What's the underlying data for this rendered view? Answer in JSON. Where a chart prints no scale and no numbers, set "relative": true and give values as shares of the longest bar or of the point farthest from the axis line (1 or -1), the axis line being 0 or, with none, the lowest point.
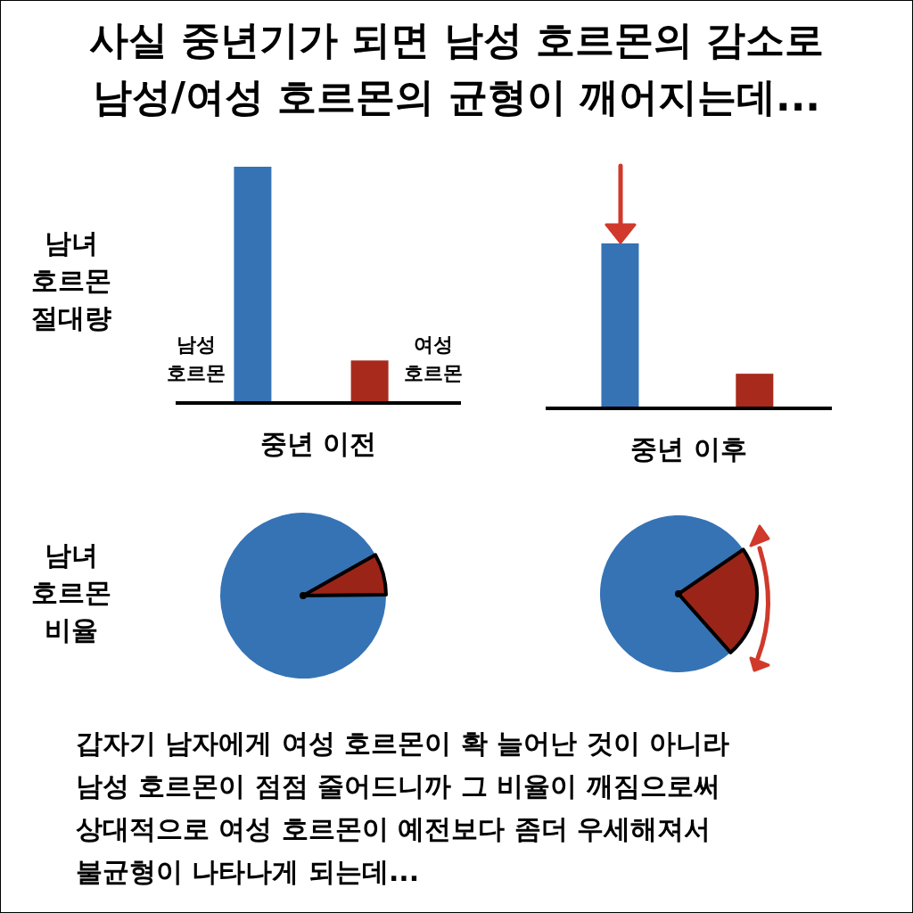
{
  "chart_data": [
    {
      "type": "bar",
      "title": "사실 중년기가 되면 남성 호르몬의 감소로\n남성/여성 호르몬의 균형이 깨어지는데...",
      "categories": [
        "남성 호르몬",
        "여성 호르몬"
      ],
      "values": [
        1,
        0.18
      ],
      "colors": [
        "#3573b5",
        "#a82a1c"
      ],
      "relative": true,
      "xlabel": "중년 이전",
      "annotations": [
        "남녀 호르몬 절대량"
      ]
    },
    {
      "type": "bar",
      "categories": [
        null,
        null
      ],
      "values": [
        1,
        0.21
      ],
      "colors": [
        "#3573b5",
        "#a82a1c"
      ],
      "relative": true,
      "xlabel": "중년 이후"
    },
    {
      "type": "pie",
      "categories": [
        null,
        null
      ],
      "values": [
        92,
        8
      ],
      "colors": [
        "#3573b5",
        "#9b2418"
      ],
      "annotations": [
        "남녀 호르몬 비율"
      ]
    },
    {
      "type": "pie",
      "categories": [
        null,
        null
      ],
      "values": [
        77,
        23
      ],
      "colors": [
        "#3573b5",
        "#9b2418"
      ],
      "annotations": [
        "갑자기 남자에게 여성 호르몬이 확 늘어난 것이 아니라\n남성 호르몬이 점점 줄어드니까 그 비율이 깨짐으로써\n상대적으로 여성 호르몬이 예전보다 좀더 우세해져서\n불균형이 나타나게 되는데..."
      ]
    }
  ]
}
